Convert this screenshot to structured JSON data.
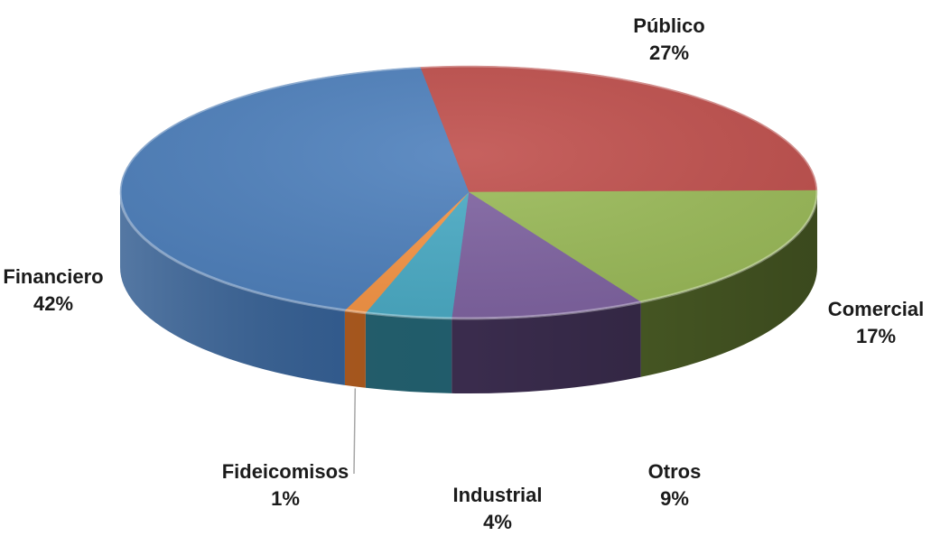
{
  "chart_data": {
    "type": "pie",
    "title": "",
    "slices": [
      {
        "label": "Público",
        "value": 27,
        "value_label": "27%",
        "color": "#c0504d",
        "side_color": "#86302d"
      },
      {
        "label": "Comercial",
        "value": 17,
        "value_label": "17%",
        "color": "#9bbb59",
        "side_color": "#4e6127"
      },
      {
        "label": "Otros",
        "value": 9,
        "value_label": "9%",
        "color": "#8064a2",
        "side_color": "#3a2c4d"
      },
      {
        "label": "Industrial",
        "value": 4,
        "value_label": "4%",
        "color": "#4bacc6",
        "side_color": "#215d6c"
      },
      {
        "label": "Fideicomisos",
        "value": 1,
        "value_label": "1%",
        "color": "#f79646",
        "side_color": "#a9561a"
      },
      {
        "label": "Financiero",
        "value": 42,
        "value_label": "42%",
        "color": "#4f81bd",
        "side_color": "#2f5a8f"
      }
    ],
    "style": "3d-pie",
    "legend": "none"
  }
}
